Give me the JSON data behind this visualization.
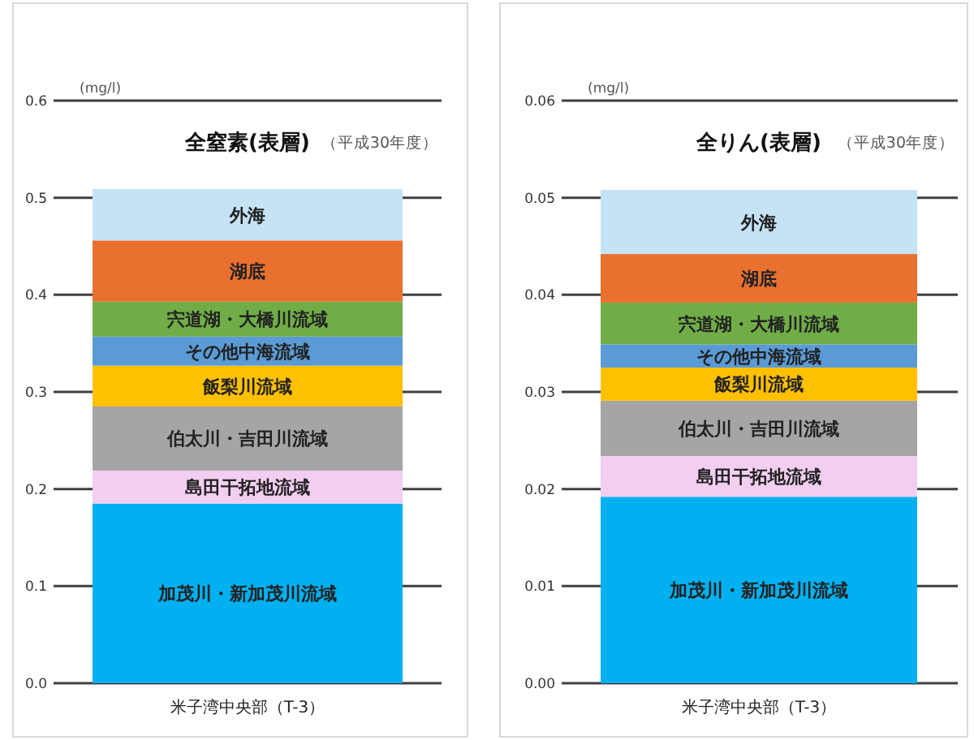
{
  "chart_data": [
    {
      "type": "bar",
      "stacked": true,
      "title": "全窒素(表層)",
      "annotations": [
        "(mg/l)",
        "（平成30年度）"
      ],
      "categories": [
        "米子湾中央部（T-3）"
      ],
      "ylim": [
        0,
        0.6
      ],
      "yticks": [
        {
          "value": 0,
          "label": "0.0"
        },
        0.1,
        0.2,
        0.3,
        0.4,
        0.5,
        0.6
      ],
      "grid": "y",
      "legend": false,
      "series": [
        {
          "name": "加茂川・新加茂川流域",
          "color": "#00b0f0",
          "values": [
            0.185
          ]
        },
        {
          "name": "島田干拓地流域",
          "color": "#f2cef0",
          "values": [
            0.034
          ]
        },
        {
          "name": "伯太川・吉田川流域",
          "color": "#a5a5a5",
          "values": [
            0.066
          ]
        },
        {
          "name": "飯梨川流域",
          "color": "#ffc000",
          "values": [
            0.042
          ]
        },
        {
          "name": "その他中海流域",
          "color": "#5b9bd5",
          "values": [
            0.03
          ]
        },
        {
          "name": "宍道湖・大橋川流域",
          "color": "#70ad47",
          "values": [
            0.036
          ]
        },
        {
          "name": "湖底",
          "color": "#e9702f",
          "values": [
            0.063
          ]
        },
        {
          "name": "外海",
          "color": "#c5e3f5",
          "values": [
            0.053
          ]
        }
      ]
    },
    {
      "type": "bar",
      "stacked": true,
      "title": "全りん(表層)",
      "annotations": [
        "(mg/l)",
        "（平成30年度）"
      ],
      "categories": [
        "米子湾中央部（T-3）"
      ],
      "ylim": [
        0,
        0.06
      ],
      "yticks": [
        {
          "value": 0,
          "label": "0.00"
        },
        {
          "value": 0.01,
          "label": "0.01"
        },
        {
          "value": 0.02,
          "label": "0.02"
        },
        {
          "value": 0.03,
          "label": "0.03"
        },
        {
          "value": 0.04,
          "label": "0.04"
        },
        {
          "value": 0.05,
          "label": "0.05"
        },
        {
          "value": 0.06,
          "label": "0.06"
        }
      ],
      "grid": "y",
      "legend": false,
      "series": [
        {
          "name": "加茂川・新加茂川流域",
          "color": "#00b0f0",
          "values": [
            0.0192
          ]
        },
        {
          "name": "島田干拓地流域",
          "color": "#f2cef0",
          "values": [
            0.0042
          ]
        },
        {
          "name": "伯太川・吉田川流域",
          "color": "#a5a5a5",
          "values": [
            0.0057
          ]
        },
        {
          "name": "飯梨川流域",
          "color": "#ffc000",
          "values": [
            0.0034
          ]
        },
        {
          "name": "その他中海流域",
          "color": "#5b9bd5",
          "values": [
            0.0024
          ]
        },
        {
          "name": "宍道湖・大橋川流域",
          "color": "#70ad47",
          "values": [
            0.0043
          ]
        },
        {
          "name": "湖底",
          "color": "#e9702f",
          "values": [
            0.005
          ]
        },
        {
          "name": "外海",
          "color": "#c5e3f5",
          "values": [
            0.0066
          ]
        }
      ]
    }
  ]
}
